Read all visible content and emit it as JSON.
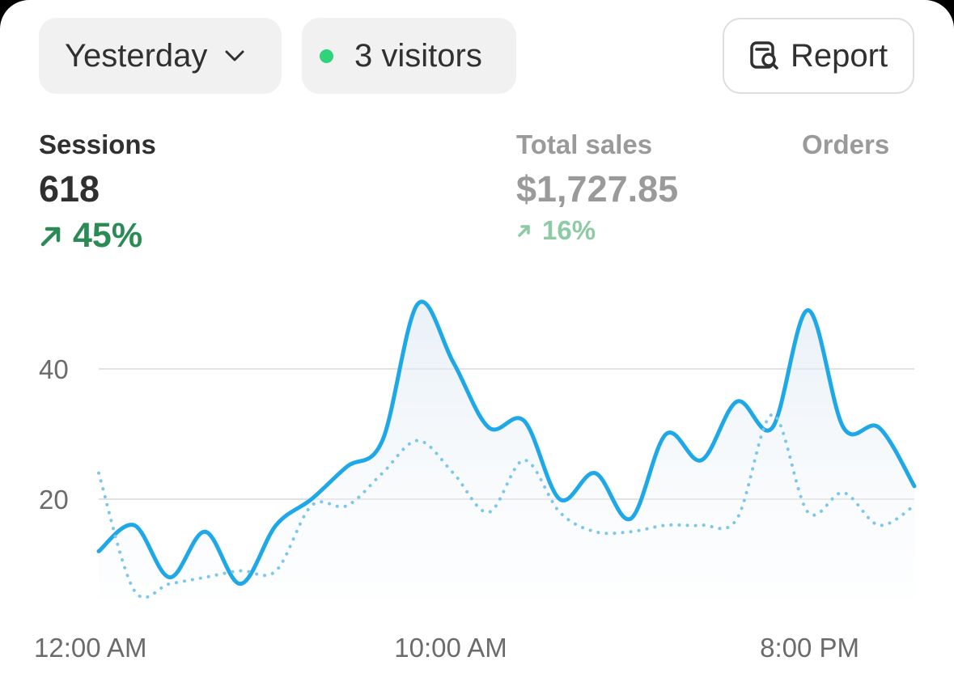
{
  "filters": {
    "period_label": "Yesterday",
    "visitors_label": "3 visitors",
    "report_label": "Report"
  },
  "metrics": {
    "sessions": {
      "label": "Sessions",
      "value": "618",
      "change": "45%"
    },
    "total_sales": {
      "label": "Total sales",
      "value": "$1,727.85",
      "change": "16%"
    },
    "orders": {
      "label": "Orders"
    }
  },
  "colors": {
    "current_line": "#1fa8e8",
    "comparison_line": "#7cc7ea",
    "positive": "#2b8a56",
    "live_dot": "#2fd37a"
  },
  "icons": {
    "period": "chevron-down-icon",
    "report": "report-search-icon",
    "trend": "arrow-up-right-icon",
    "live": "status-dot-icon"
  },
  "chart_data": {
    "type": "line",
    "x_tick_labels": [
      "12:00 AM",
      "10:00 AM",
      "8:00 PM"
    ],
    "y_ticks": [
      20,
      40
    ],
    "ylim": [
      0,
      55
    ],
    "grid": true,
    "series": [
      {
        "style": "solid",
        "values": [
          12,
          16,
          8,
          15,
          7,
          16,
          20,
          25,
          29,
          50,
          41,
          31,
          32,
          20,
          24,
          17,
          30,
          26,
          35,
          31,
          49,
          31,
          31,
          22
        ]
      },
      {
        "style": "dotted",
        "values": [
          24,
          6,
          7,
          8,
          9,
          9,
          19,
          19,
          24,
          29,
          24,
          18,
          26,
          18,
          15,
          15,
          16,
          16,
          17,
          33,
          18,
          21,
          16,
          19
        ]
      }
    ]
  }
}
